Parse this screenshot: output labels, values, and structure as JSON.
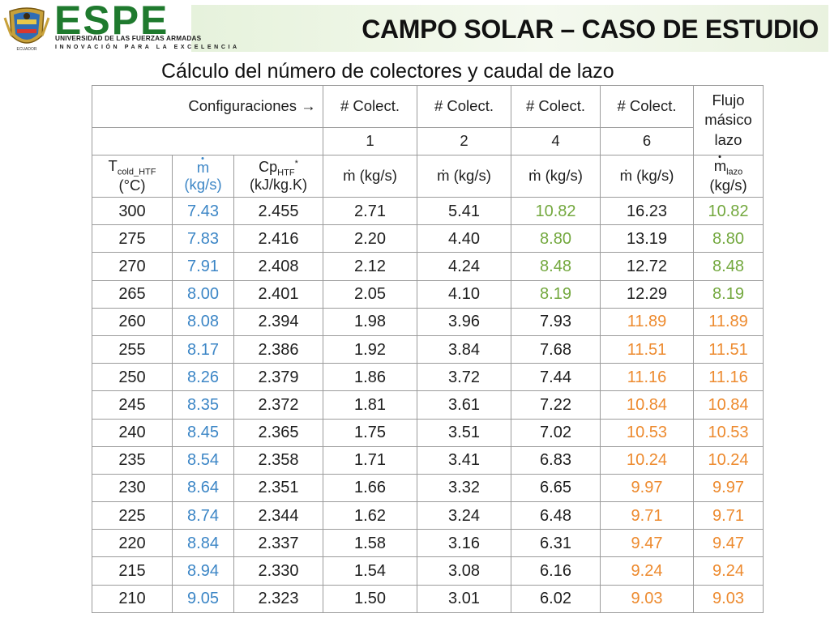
{
  "header": {
    "logo_text": "ESPE",
    "university": "UNIVERSIDAD DE LAS FUERZAS ARMADAS",
    "tagline": "INNOVACIÓN PARA LA EXCELENCIA",
    "emblem_caption": "ECUADOR",
    "title": "CAMPO SOLAR – CASO DE ESTUDIO"
  },
  "subtitle": "Cálculo del número de colectores y caudal de lazo",
  "colors": {
    "brand_green": "#1f7a2e",
    "value_blue": "#3c86c6",
    "value_green": "#73a83e",
    "value_orange": "#ed8a2e",
    "grid": "#9b9b9b"
  },
  "table": {
    "config_label": "Configuraciones →",
    "colect_label": "# Colect.",
    "colect_counts": [
      "1",
      "2",
      "4",
      "6"
    ],
    "flujo_label_1": "Flujo",
    "flujo_label_2": "másico",
    "flujo_label_3": "lazo",
    "t_label_main": "T",
    "t_label_sub": "cold_HTF",
    "t_unit": "(°C)",
    "m_symbol": "m",
    "m_unit": "(kg/s)",
    "cp_label_main": "Cp",
    "cp_label_sub": "HTF",
    "cp_label_star": "*",
    "cp_unit": "(kJ/kg.K)",
    "m_col_label": "ṁ (kg/s)",
    "mlazo_sub": "lazo",
    "mlazo_unit": "(kg/s)",
    "rows": [
      {
        "t": "300",
        "m": "7.43",
        "cp": "2.455",
        "c1": "2.71",
        "c2": "5.41",
        "c4": "10.82",
        "c6": "16.23",
        "lazo": "10.82",
        "hl": "c4"
      },
      {
        "t": "275",
        "m": "7.83",
        "cp": "2.416",
        "c1": "2.20",
        "c2": "4.40",
        "c4": "8.80",
        "c6": "13.19",
        "lazo": "8.80",
        "hl": "c4"
      },
      {
        "t": "270",
        "m": "7.91",
        "cp": "2.408",
        "c1": "2.12",
        "c2": "4.24",
        "c4": "8.48",
        "c6": "12.72",
        "lazo": "8.48",
        "hl": "c4"
      },
      {
        "t": "265",
        "m": "8.00",
        "cp": "2.401",
        "c1": "2.05",
        "c2": "4.10",
        "c4": "8.19",
        "c6": "12.29",
        "lazo": "8.19",
        "hl": "c4"
      },
      {
        "t": "260",
        "m": "8.08",
        "cp": "2.394",
        "c1": "1.98",
        "c2": "3.96",
        "c4": "7.93",
        "c6": "11.89",
        "lazo": "11.89",
        "hl": "c6"
      },
      {
        "t": "255",
        "m": "8.17",
        "cp": "2.386",
        "c1": "1.92",
        "c2": "3.84",
        "c4": "7.68",
        "c6": "11.51",
        "lazo": "11.51",
        "hl": "c6"
      },
      {
        "t": "250",
        "m": "8.26",
        "cp": "2.379",
        "c1": "1.86",
        "c2": "3.72",
        "c4": "7.44",
        "c6": "11.16",
        "lazo": "11.16",
        "hl": "c6"
      },
      {
        "t": "245",
        "m": "8.35",
        "cp": "2.372",
        "c1": "1.81",
        "c2": "3.61",
        "c4": "7.22",
        "c6": "10.84",
        "lazo": "10.84",
        "hl": "c6"
      },
      {
        "t": "240",
        "m": "8.45",
        "cp": "2.365",
        "c1": "1.75",
        "c2": "3.51",
        "c4": "7.02",
        "c6": "10.53",
        "lazo": "10.53",
        "hl": "c6"
      },
      {
        "t": "235",
        "m": "8.54",
        "cp": "2.358",
        "c1": "1.71",
        "c2": "3.41",
        "c4": "6.83",
        "c6": "10.24",
        "lazo": "10.24",
        "hl": "c6"
      },
      {
        "t": "230",
        "m": "8.64",
        "cp": "2.351",
        "c1": "1.66",
        "c2": "3.32",
        "c4": "6.65",
        "c6": "9.97",
        "lazo": "9.97",
        "hl": "c6"
      },
      {
        "t": "225",
        "m": "8.74",
        "cp": "2.344",
        "c1": "1.62",
        "c2": "3.24",
        "c4": "6.48",
        "c6": "9.71",
        "lazo": "9.71",
        "hl": "c6"
      },
      {
        "t": "220",
        "m": "8.84",
        "cp": "2.337",
        "c1": "1.58",
        "c2": "3.16",
        "c4": "6.31",
        "c6": "9.47",
        "lazo": "9.47",
        "hl": "c6"
      },
      {
        "t": "215",
        "m": "8.94",
        "cp": "2.330",
        "c1": "1.54",
        "c2": "3.08",
        "c4": "6.16",
        "c6": "9.24",
        "lazo": "9.24",
        "hl": "c6"
      },
      {
        "t": "210",
        "m": "9.05",
        "cp": "2.323",
        "c1": "1.50",
        "c2": "3.01",
        "c4": "6.02",
        "c6": "9.03",
        "lazo": "9.03",
        "hl": "c6"
      }
    ]
  }
}
